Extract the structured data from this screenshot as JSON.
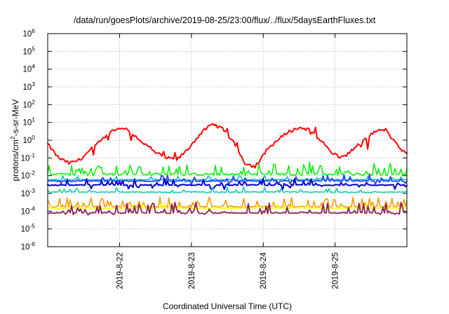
{
  "chart_data": {
    "type": "line",
    "title": "/data/run/goesPlots/archive/2019-08-25/23:00/flux/../flux/5daysEarthFluxes.txt",
    "xlabel": "Coordinated Universal Time (UTC)",
    "ylabel": "protons/cm²-s-sr-MeV",
    "ylabel_base": "protons/cm",
    "ylabel_sup": "2",
    "ylabel_rest": "-s-sr-MeV",
    "yscale": "log",
    "ylim": [
      1e-06,
      1000000.0
    ],
    "xlim": [
      "2019-08-21T00:00",
      "2019-08-26T00:00"
    ],
    "grid": true,
    "y_ticks": [
      {
        "base": "10",
        "exp": "-6"
      },
      {
        "base": "10",
        "exp": "-5"
      },
      {
        "base": "10",
        "exp": "-4"
      },
      {
        "base": "10",
        "exp": "-3"
      },
      {
        "base": "10",
        "exp": "-2"
      },
      {
        "base": "10",
        "exp": "-1"
      },
      {
        "base": "10",
        "exp": "0"
      },
      {
        "base": "10",
        "exp": "1"
      },
      {
        "base": "10",
        "exp": "2"
      },
      {
        "base": "10",
        "exp": "3"
      },
      {
        "base": "10",
        "exp": "4"
      },
      {
        "base": "10",
        "exp": "5"
      },
      {
        "base": "10",
        "exp": "6"
      }
    ],
    "x_ticks": [
      "2019-8-22",
      "2019-8-23",
      "2019-8-24",
      "2019-8-25"
    ],
    "series": [
      {
        "color": "#ff0000",
        "day_offset": [
          0.0,
          0.15,
          0.3,
          0.45,
          0.6,
          0.75,
          0.9,
          1.05,
          1.2,
          1.35,
          1.5,
          1.65,
          1.8,
          1.95,
          2.05,
          2.15,
          2.3,
          2.45,
          2.6,
          2.75,
          2.9,
          3.05,
          3.2,
          3.35,
          3.5,
          3.65,
          3.8,
          3.95,
          4.1,
          4.25,
          4.4,
          4.55,
          4.7,
          4.85,
          5.0
        ],
        "values": [
          0.6,
          0.1,
          0.05,
          0.08,
          0.3,
          1.0,
          3.0,
          5.0,
          2.0,
          0.6,
          0.2,
          0.1,
          0.08,
          0.3,
          1.0,
          3.0,
          8.0,
          4.0,
          0.6,
          0.05,
          0.03,
          0.3,
          1.0,
          3.0,
          5.0,
          4.0,
          1.0,
          0.2,
          0.1,
          0.3,
          1.0,
          3.0,
          4.0,
          0.6,
          0.15
        ]
      },
      {
        "color": "#00ee00",
        "day_offset": [
          0.0,
          5.0
        ],
        "values": [
          0.012,
          0.012
        ]
      },
      {
        "color": "#00bbbb",
        "day_offset": [
          0.0,
          5.0
        ],
        "values": [
          0.006,
          0.006
        ]
      },
      {
        "color": "#2244ff",
        "day_offset": [
          0.0,
          5.0
        ],
        "values": [
          0.005,
          0.005
        ]
      },
      {
        "color": "#0000cc",
        "day_offset": [
          0.0,
          5.0
        ],
        "values": [
          0.003,
          0.003
        ]
      },
      {
        "color": "#00ccaa",
        "day_offset": [
          0.0,
          5.0
        ],
        "values": [
          0.0012,
          0.0012
        ]
      },
      {
        "color": "#ff9900",
        "day_offset": [
          0.0,
          5.0
        ],
        "values": [
          0.00018,
          0.00018
        ]
      },
      {
        "color": "#ffff00",
        "day_offset": [
          0.0,
          5.0
        ],
        "values": [
          0.00015,
          0.00015
        ]
      },
      {
        "color": "#882255",
        "day_offset": [
          0.0,
          5.0
        ],
        "values": [
          8e-05,
          8e-05
        ]
      }
    ]
  }
}
